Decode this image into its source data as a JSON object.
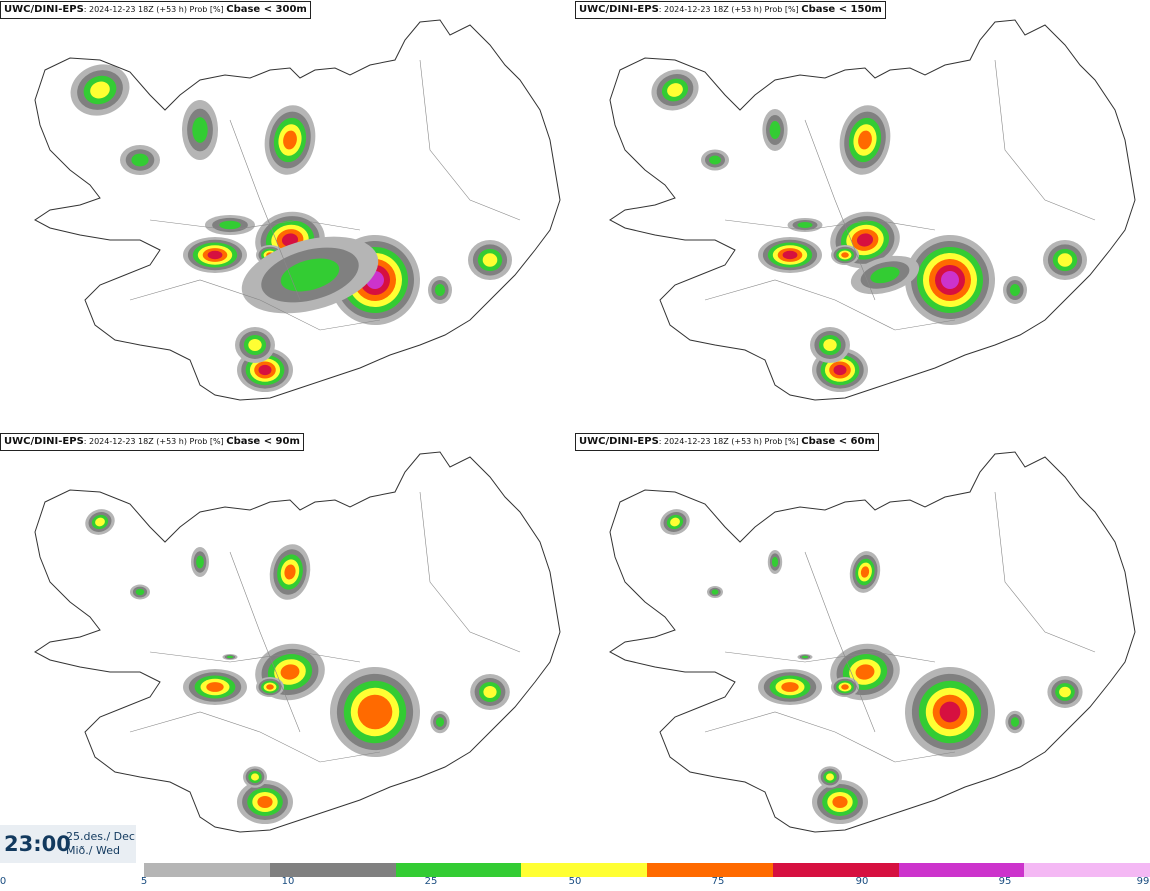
{
  "panels": [
    {
      "model": "UWC/DINI-EPS",
      "run": ": 2024-12-23 18Z (+53 h) Prob [%]",
      "threshold": "Cbase < 300m"
    },
    {
      "model": "UWC/DINI-EPS",
      "run": ": 2024-12-23 18Z (+53 h) Prob [%]",
      "threshold": "Cbase < 150m"
    },
    {
      "model": "UWC/DINI-EPS",
      "run": ": 2024-12-23 18Z (+53 h) Prob [%]",
      "threshold": "Cbase < 90m"
    },
    {
      "model": "UWC/DINI-EPS",
      "run": ": 2024-12-23 18Z (+53 h) Prob [%]",
      "threshold": "Cbase < 60m"
    }
  ],
  "time": {
    "clock": "23:00",
    "date_line1": "25.des./ Dec",
    "date_line2": "Mið./ Wed"
  },
  "colorbar": {
    "ticks": [
      "0",
      "5",
      "10",
      "25",
      "50",
      "75",
      "90",
      "95",
      "99"
    ],
    "colors": [
      "#b5b5b5",
      "#808080",
      "#33cc33",
      "#ffff33",
      "#ff6a00",
      "#d61040",
      "#cc33cc",
      "#f4b8f4"
    ]
  }
}
